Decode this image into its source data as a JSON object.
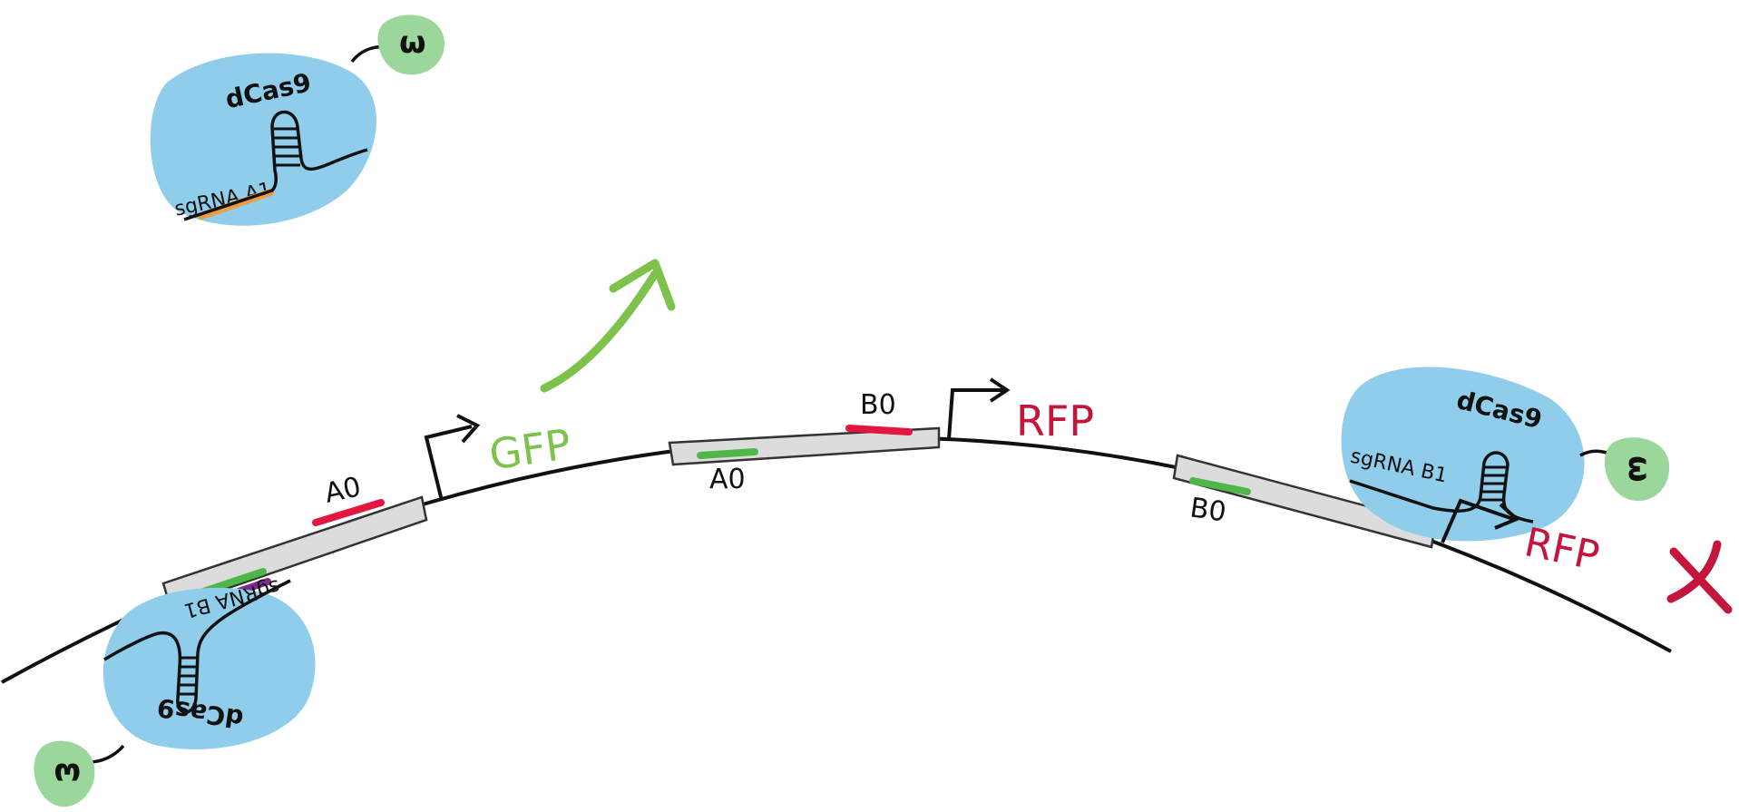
{
  "colors": {
    "dcas9_blob": "#8fcdea",
    "omega_blob": "#9bd79b",
    "backbone": "#111111",
    "segment_fill": "#d9d9d9",
    "site_red": "#e2163f",
    "site_green": "#4fb649",
    "site_purple": "#7b2d8e",
    "site_orange": "#f39a3a",
    "gfp_green": "#7dc24b",
    "rfp_red": "#c4163c",
    "cross_red": "#c4163c"
  },
  "proteins": {
    "top_dcas9": "dCas9",
    "top_sgrna": "sgRNA A1",
    "bottom_dcas9": "dCas9",
    "bottom_sgrna": "sgRNA B1",
    "right_dcas9": "dCas9",
    "right_sgrna": "sgRNA B1",
    "omega_symbol": "ω"
  },
  "sites": {
    "a0_left": "A0",
    "a0_middle": "A0",
    "b0_middle": "B0",
    "b0_right": "B0"
  },
  "genes": {
    "gfp": "GFP",
    "rfp_middle": "RFP",
    "rfp_right": "RFP"
  },
  "icons": {
    "activation": "up-arrow-icon",
    "repression": "cross-icon",
    "promoter": "promoter-arrow-icon"
  }
}
